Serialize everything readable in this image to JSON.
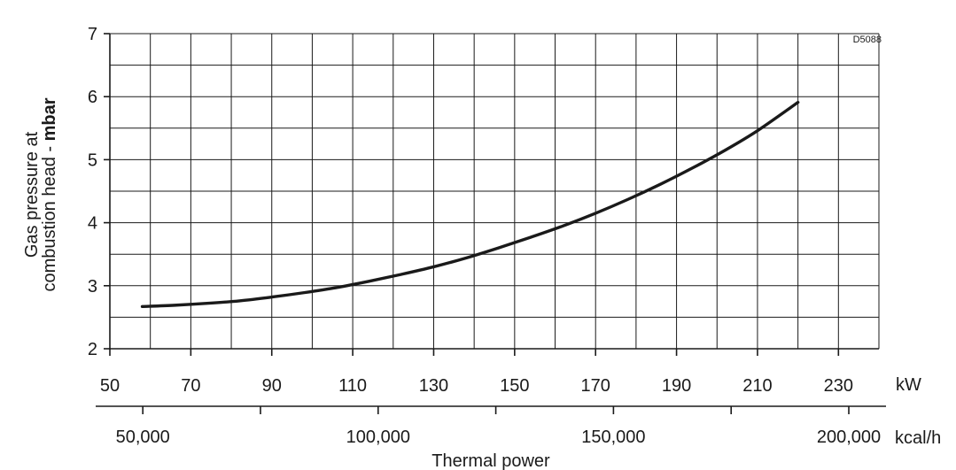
{
  "chart_data": {
    "type": "line",
    "code": "D5088",
    "ylabel_line1": "Gas pressure at",
    "ylabel_line2_prefix": "combustion head - ",
    "ylabel_line2_bold": "mbar",
    "xlabel": "Thermal power",
    "x_unit": "kW",
    "x2_unit": "kcal/h",
    "xlim": [
      50,
      240
    ],
    "ylim": [
      2,
      7
    ],
    "grid": true,
    "x_ticks": [
      "50",
      "70",
      "90",
      "110",
      "130",
      "150",
      "170",
      "190",
      "210",
      "230"
    ],
    "y_ticks": [
      "2",
      "3",
      "4",
      "5",
      "6",
      "7"
    ],
    "x2_ticks": [
      "50,000",
      "100,000",
      "150,000",
      "200,000"
    ],
    "series": [
      {
        "x": [
          58,
          66,
          74,
          82,
          90,
          98,
          106,
          114,
          122,
          130,
          138,
          146,
          154,
          162,
          170,
          178,
          186,
          194,
          202,
          210,
          220
        ],
        "y": [
          2.67,
          2.69,
          2.72,
          2.76,
          2.82,
          2.89,
          2.97,
          3.07,
          3.18,
          3.3,
          3.44,
          3.6,
          3.77,
          3.95,
          4.15,
          4.37,
          4.61,
          4.87,
          5.15,
          5.46,
          5.91
        ]
      }
    ]
  }
}
